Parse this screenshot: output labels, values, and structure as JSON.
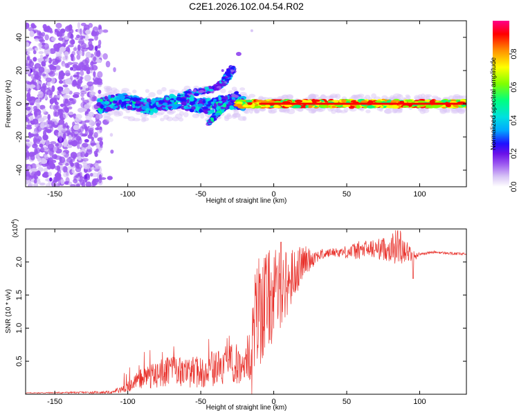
{
  "figure_title": "C2E1.2026.102.04.54.R02",
  "colors": {
    "snr_line": "#e8302a",
    "spectrogram_scale": [
      "#ffffff",
      "#d9c6f6",
      "#9a55f0",
      "#6a10e8",
      "#2010ff",
      "#00a8ff",
      "#00e0e0",
      "#00ff80",
      "#80ff00",
      "#ffff00",
      "#ff9000",
      "#ff0000",
      "#ff0088"
    ]
  },
  "chart_data": [
    {
      "type": "heatmap",
      "name": "spectrogram",
      "xlabel": "Height of straight line (km)",
      "ylabel": "Frequency (Hz)",
      "xlim": [
        -170,
        132
      ],
      "ylim": [
        -50,
        50
      ],
      "xticks": [
        -150,
        -100,
        -50,
        0,
        50,
        100
      ],
      "xtick_labels": [
        "-150",
        "-100",
        "-50",
        "0",
        "50",
        "100"
      ],
      "yticks": [
        -40,
        -20,
        0,
        20,
        40
      ],
      "ytick_labels": [
        "-40",
        "-20",
        "0",
        "20",
        "40"
      ],
      "colorbar": {
        "label": "Normalized spectral amplitude",
        "range": [
          0,
          1
        ],
        "ticks": [
          0.0,
          0.2,
          0.4,
          0.6,
          0.8
        ],
        "tick_labels": [
          "0.0",
          "0.2",
          "0.4",
          "0.6",
          "0.8"
        ]
      },
      "features": [
        {
          "description": "broadband noise",
          "x_range": [
            -170,
            -118
          ],
          "freq_range": [
            -50,
            48
          ]
        },
        {
          "description": "signal band near 0 Hz",
          "x_range": [
            -120,
            132
          ],
          "freq_center": 0
        },
        {
          "description": "rising branch",
          "points": [
            [
              -60,
              6
            ],
            [
              -40,
              9
            ],
            [
              -33,
              14
            ],
            [
              -30,
              19
            ],
            [
              -28,
              21
            ]
          ]
        },
        {
          "description": "isolated blob",
          "points": [
            [
              -24,
              30
            ]
          ]
        }
      ]
    },
    {
      "type": "line",
      "name": "snr",
      "xlabel": "Height of straight line (km)",
      "ylabel": "SNR (10 * v/v)",
      "multiplier": "(x10",
      "multiplier_exp": "4",
      "multiplier_close": ")",
      "xlim": [
        -170,
        132
      ],
      "ylim": [
        0,
        2.5
      ],
      "xticks": [
        -150,
        -100,
        -50,
        0,
        50,
        100
      ],
      "xtick_labels": [
        "-150",
        "-100",
        "-50",
        "0",
        "50",
        "100"
      ],
      "yticks": [
        0.5,
        1.0,
        1.5,
        2.0
      ],
      "ytick_labels": [
        "0.5",
        "1.0",
        "1.5",
        "2.0"
      ],
      "envelope": {
        "x": [
          -170,
          -110,
          -100,
          -90,
          -80,
          -70,
          -60,
          -50,
          -40,
          -30,
          -20,
          -15,
          -12,
          -10,
          -5,
          0,
          5,
          10,
          15,
          20,
          25,
          30,
          35,
          40,
          50,
          60,
          70,
          80,
          85,
          90,
          95,
          100,
          110,
          120,
          132
        ],
        "y": [
          0.02,
          0.03,
          0.12,
          0.25,
          0.3,
          0.35,
          0.32,
          0.35,
          0.4,
          0.45,
          0.48,
          0.6,
          1.2,
          1.3,
          1.4,
          1.5,
          1.6,
          1.7,
          1.85,
          2.0,
          2.05,
          2.1,
          2.12,
          2.15,
          2.15,
          2.18,
          2.2,
          2.2,
          2.25,
          2.2,
          2.08,
          2.12,
          2.15,
          2.13,
          2.12
        ]
      },
      "noise": {
        "x": [
          -170,
          -110,
          -100,
          -80,
          -60,
          -40,
          -20,
          -15,
          -10,
          0,
          10,
          20,
          30,
          40,
          50,
          60,
          70,
          80,
          85,
          90,
          95,
          100,
          132
        ],
        "amp": [
          0.005,
          0.02,
          0.25,
          0.35,
          0.35,
          0.4,
          0.5,
          0.8,
          0.9,
          0.7,
          0.5,
          0.25,
          0.1,
          0.06,
          0.1,
          0.15,
          0.15,
          0.2,
          0.3,
          0.2,
          0.1,
          0.02,
          0.02
        ]
      }
    }
  ]
}
